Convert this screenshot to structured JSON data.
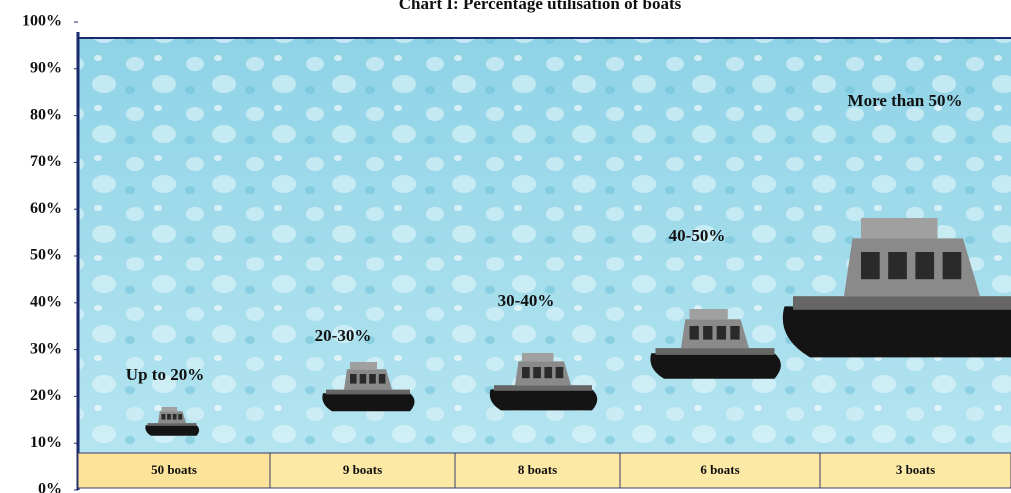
{
  "chart_data": {
    "type": "pictograph",
    "title": "Chart I: Percentage utilisation of boats",
    "categories": [
      "50 boats",
      "9 boats",
      "8 boats",
      "6 boats",
      "3 boats"
    ],
    "labels": [
      "Up to 20%",
      "20-30%",
      "30-40%",
      "40-50%",
      "More than 50%"
    ],
    "ylim": [
      0,
      100
    ],
    "yticks": [
      {
        "value": 0,
        "label": "0%"
      },
      {
        "value": 10,
        "label": "10%"
      },
      {
        "value": 20,
        "label": "20%"
      },
      {
        "value": 30,
        "label": "30%"
      },
      {
        "value": 40,
        "label": "40%"
      },
      {
        "value": 50,
        "label": "50%"
      },
      {
        "value": 60,
        "label": "60%"
      },
      {
        "value": 70,
        "label": "70%"
      },
      {
        "value": 80,
        "label": "80%"
      },
      {
        "value": 90,
        "label": "90%"
      },
      {
        "value": 100,
        "label": "100%"
      }
    ]
  }
}
